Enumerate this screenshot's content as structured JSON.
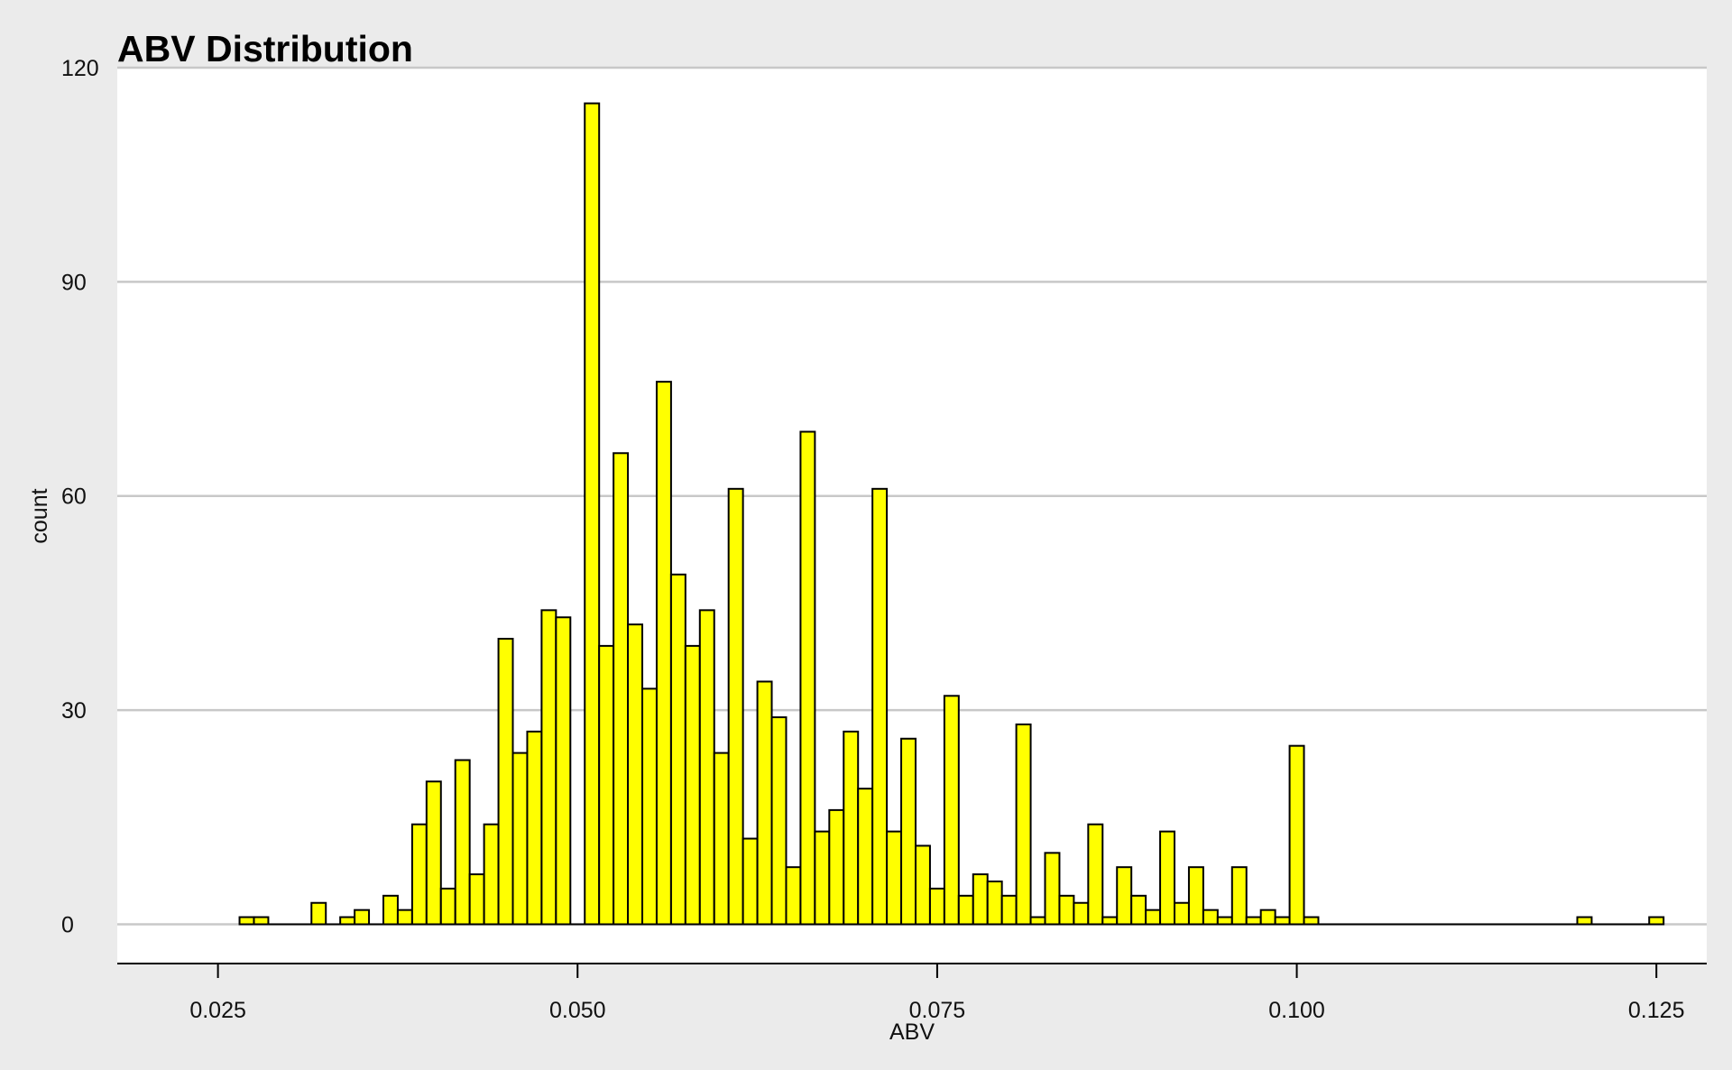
{
  "chart_data": {
    "type": "bar",
    "title": "ABV Distribution",
    "xlabel": "ABV",
    "ylabel": "count",
    "xlim": [
      0.018,
      0.1285
    ],
    "ylim": [
      -5.5,
      120
    ],
    "x_ticks": [
      0.025,
      0.05,
      0.075,
      0.1,
      0.125
    ],
    "x_tick_labels": [
      "0.025",
      "0.050",
      "0.075",
      "0.100",
      "0.125"
    ],
    "y_ticks": [
      0,
      30,
      60,
      90,
      120
    ],
    "y_tick_labels": [
      "0",
      "30",
      "60",
      "90",
      "120"
    ],
    "grid": "horizontal",
    "bin_start": 0.0265,
    "bin_width": 0.001,
    "values": [
      1,
      1,
      0,
      0,
      0,
      3,
      0,
      1,
      2,
      0,
      4,
      2,
      14,
      20,
      5,
      23,
      7,
      14,
      40,
      24,
      27,
      44,
      43,
      0,
      115,
      39,
      66,
      42,
      33,
      76,
      49,
      39,
      44,
      24,
      61,
      12,
      34,
      29,
      8,
      69,
      13,
      16,
      27,
      19,
      61,
      13,
      26,
      11,
      5,
      32,
      4,
      7,
      6,
      4,
      28,
      1,
      10,
      4,
      3,
      14,
      1,
      8,
      4,
      2,
      13,
      3,
      8,
      2,
      1,
      8,
      1,
      2,
      1,
      25,
      1,
      0,
      0,
      0,
      0,
      0,
      0,
      0,
      0,
      0,
      0,
      0,
      0,
      0,
      0,
      0,
      0,
      0,
      0,
      1,
      0,
      0,
      0,
      0,
      1
    ],
    "colors": {
      "bar_fill": "#ffff00",
      "bar_stroke": "#000000",
      "panel": "#ffffff",
      "background": "#ebebeb",
      "grid": "#c8c8c8"
    }
  }
}
